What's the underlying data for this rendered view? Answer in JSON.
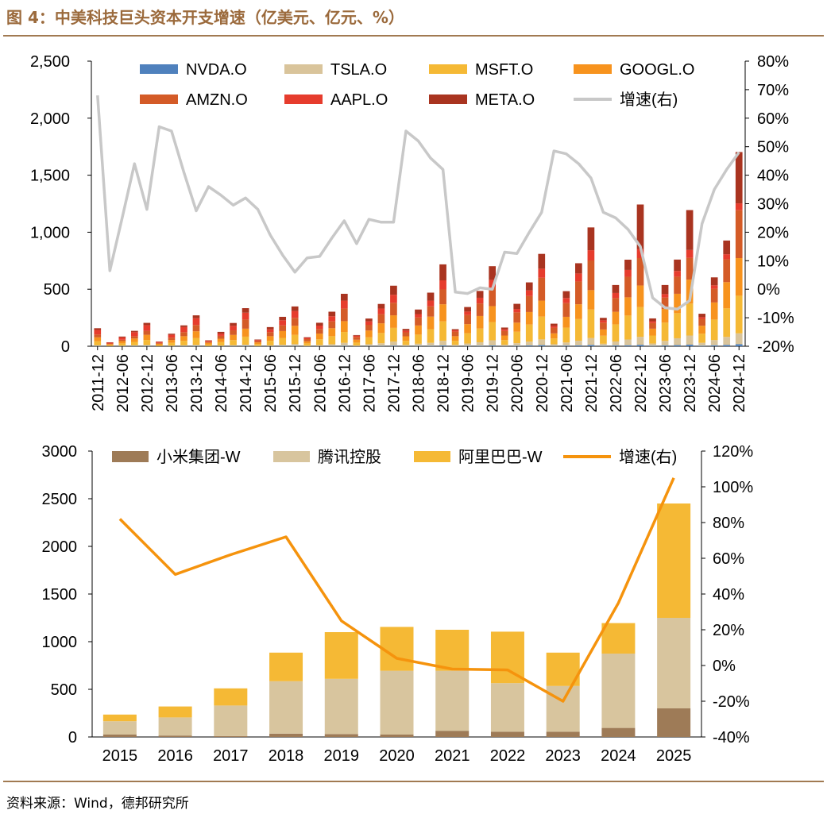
{
  "figure": {
    "title": "图 4：中美科技巨头资本开支增速（亿美元、亿元、%）",
    "source": "资料来源：Wind，德邦研究所"
  },
  "chart_data": [
    {
      "type": "bar",
      "stacked": true,
      "title": "",
      "categories": [
        "2011-12",
        "2012-03",
        "2012-06",
        "2012-09",
        "2012-12",
        "2013-03",
        "2013-06",
        "2013-09",
        "2013-12",
        "2014-03",
        "2014-06",
        "2014-09",
        "2014-12",
        "2015-03",
        "2015-06",
        "2015-09",
        "2015-12",
        "2016-03",
        "2016-06",
        "2016-09",
        "2016-12",
        "2017-03",
        "2017-06",
        "2017-09",
        "2017-12",
        "2018-03",
        "2018-06",
        "2018-09",
        "2018-12",
        "2019-03",
        "2019-06",
        "2019-09",
        "2019-12",
        "2020-03",
        "2020-06",
        "2020-09",
        "2020-12",
        "2021-03",
        "2021-06",
        "2021-09",
        "2021-12",
        "2022-03",
        "2022-06",
        "2022-09",
        "2022-12",
        "2023-03",
        "2023-06",
        "2023-09",
        "2023-12",
        "2024-03",
        "2024-06",
        "2024-09",
        "2024-12"
      ],
      "tick_labels": [
        "2011-12",
        "2012-06",
        "2012-12",
        "2013-06",
        "2013-12",
        "2014-06",
        "2014-12",
        "2015-06",
        "2015-12",
        "2016-06",
        "2016-12",
        "2017-06",
        "2017-12",
        "2018-06",
        "2018-12",
        "2019-06",
        "2019-12",
        "2020-06",
        "2020-12",
        "2021-06",
        "2021-12",
        "2022-06",
        "2022-12",
        "2023-06",
        "2023-12",
        "2024-06",
        "2024-12"
      ],
      "series": [
        {
          "name": "NVDA.O",
          "color": "#4f81bd",
          "values": [
            3,
            1,
            2,
            3,
            4,
            1,
            2,
            3,
            4,
            1,
            2,
            3,
            4,
            1,
            2,
            3,
            4,
            1,
            2,
            3,
            5,
            1,
            3,
            4,
            6,
            2,
            4,
            5,
            8,
            2,
            4,
            5,
            7,
            2,
            5,
            7,
            10,
            3,
            6,
            8,
            12,
            4,
            7,
            9,
            13,
            4,
            7,
            10,
            14,
            5,
            9,
            12,
            18
          ]
        },
        {
          "name": "TSLA.O",
          "color": "#d9c49b",
          "values": [
            5,
            1,
            3,
            5,
            6,
            1,
            3,
            5,
            7,
            2,
            4,
            6,
            10,
            3,
            6,
            10,
            15,
            4,
            9,
            15,
            25,
            6,
            15,
            22,
            35,
            10,
            18,
            25,
            40,
            11,
            20,
            30,
            45,
            12,
            22,
            33,
            50,
            15,
            27,
            40,
            60,
            18,
            35,
            50,
            70,
            20,
            40,
            60,
            80,
            25,
            45,
            70,
            95
          ]
        },
        {
          "name": "MSFT.O",
          "color": "#f5b935",
          "values": [
            35,
            7,
            20,
            30,
            45,
            8,
            25,
            40,
            60,
            12,
            30,
            45,
            70,
            15,
            40,
            60,
            80,
            20,
            50,
            70,
            95,
            25,
            60,
            90,
            120,
            35,
            80,
            120,
            170,
            35,
            90,
            120,
            160,
            40,
            100,
            150,
            200,
            50,
            130,
            190,
            250,
            70,
            150,
            210,
            260,
            70,
            160,
            220,
            280,
            80,
            180,
            250,
            330
          ]
        },
        {
          "name": "GOOGL.O",
          "color": "#f7931e",
          "values": [
            35,
            10,
            20,
            30,
            45,
            12,
            25,
            40,
            60,
            15,
            30,
            45,
            70,
            15,
            40,
            60,
            80,
            18,
            50,
            70,
            95,
            25,
            60,
            85,
            110,
            40,
            80,
            110,
            150,
            40,
            80,
            110,
            140,
            40,
            80,
            110,
            140,
            45,
            95,
            130,
            170,
            55,
            110,
            160,
            190,
            60,
            120,
            170,
            210,
            70,
            150,
            230,
            330
          ]
        },
        {
          "name": "AMZN.O",
          "color": "#d45b27",
          "values": [
            25,
            5,
            12,
            20,
            35,
            8,
            20,
            35,
            55,
            10,
            25,
            40,
            80,
            12,
            35,
            50,
            70,
            20,
            40,
            60,
            110,
            25,
            50,
            80,
            110,
            35,
            70,
            90,
            130,
            40,
            80,
            110,
            160,
            40,
            90,
            140,
            200,
            50,
            120,
            200,
            260,
            60,
            120,
            180,
            240,
            50,
            100,
            150,
            190,
            60,
            120,
            200,
            420
          ]
        },
        {
          "name": "AAPL.O",
          "color": "#e63c2d",
          "values": [
            40,
            8,
            20,
            35,
            50,
            8,
            25,
            45,
            60,
            8,
            20,
            40,
            60,
            8,
            25,
            45,
            60,
            10,
            30,
            45,
            70,
            10,
            30,
            50,
            70,
            15,
            30,
            50,
            80,
            12,
            30,
            50,
            70,
            15,
            30,
            50,
            80,
            15,
            45,
            70,
            90,
            20,
            45,
            60,
            80,
            15,
            30,
            50,
            70,
            15,
            30,
            45,
            60
          ]
        },
        {
          "name": "META.O",
          "color": "#a93420",
          "values": [
            15,
            3,
            8,
            12,
            20,
            3,
            10,
            15,
            25,
            4,
            15,
            25,
            40,
            5,
            20,
            30,
            40,
            6,
            25,
            40,
            60,
            6,
            25,
            40,
            80,
            15,
            40,
            70,
            140,
            10,
            40,
            60,
            120,
            15,
            45,
            70,
            130,
            20,
            60,
            90,
            200,
            22,
            70,
            90,
            390,
            25,
            80,
            100,
            350,
            30,
            70,
            120,
            450
          ]
        },
        {
          "name": "增速(右)",
          "color": "#c8c8c8",
          "type": "line",
          "axis": "right",
          "values": [
            68,
            6.5,
            25,
            44,
            28,
            57,
            55.5,
            41,
            27.5,
            36,
            33,
            29.5,
            32,
            28,
            19,
            12,
            6,
            11,
            11.5,
            18,
            24,
            16,
            24.5,
            23.5,
            23.5,
            55.5,
            52,
            46,
            42,
            -1,
            -1.5,
            0.5,
            0,
            13,
            12.5,
            20,
            27,
            48.5,
            47.5,
            44,
            39,
            27,
            25,
            21,
            15,
            -3,
            -6.5,
            -7,
            -4,
            23,
            35,
            42,
            48
          ]
        }
      ],
      "yleft": {
        "ylim": [
          0,
          2500
        ],
        "ticks": [
          "0",
          "500",
          "1,000",
          "1,500",
          "2,000",
          "2,500"
        ]
      },
      "yright": {
        "ylim": [
          -20,
          80
        ],
        "ticks": [
          "-20%",
          "-10%",
          "0%",
          "10%",
          "20%",
          "30%",
          "40%",
          "50%",
          "60%",
          "70%",
          "80%"
        ]
      },
      "legend_position": "top"
    },
    {
      "type": "bar",
      "stacked": true,
      "title": "",
      "categories": [
        "2015",
        "2016",
        "2017",
        "2018",
        "2019",
        "2020",
        "2021",
        "2022",
        "2023",
        "2024",
        "2025"
      ],
      "series": [
        {
          "name": "小米集团-W",
          "color": "#9e7b57",
          "values": [
            25,
            15,
            10,
            35,
            30,
            25,
            65,
            55,
            55,
            95,
            300
          ]
        },
        {
          "name": "腾讯控股",
          "color": "#d8c59e",
          "values": [
            140,
            190,
            320,
            550,
            580,
            670,
            630,
            510,
            480,
            780,
            950
          ]
        },
        {
          "name": "阿里巴巴-W",
          "color": "#f5b935",
          "values": [
            70,
            115,
            180,
            300,
            490,
            460,
            430,
            540,
            350,
            320,
            1200
          ]
        },
        {
          "name": "增速(右)",
          "color": "#f5930d",
          "type": "line",
          "axis": "right",
          "values": [
            82,
            51,
            62,
            72,
            25,
            4,
            -2,
            -2.5,
            -20,
            35,
            105
          ]
        }
      ],
      "yleft": {
        "ylim": [
          0,
          3000
        ],
        "ticks": [
          "0",
          "500",
          "1000",
          "1500",
          "2000",
          "2500",
          "3000"
        ]
      },
      "yright": {
        "ylim": [
          -40,
          120
        ],
        "ticks": [
          "-40%",
          "-20%",
          "0%",
          "20%",
          "40%",
          "60%",
          "80%",
          "100%",
          "120%"
        ]
      },
      "legend_position": "top"
    }
  ]
}
